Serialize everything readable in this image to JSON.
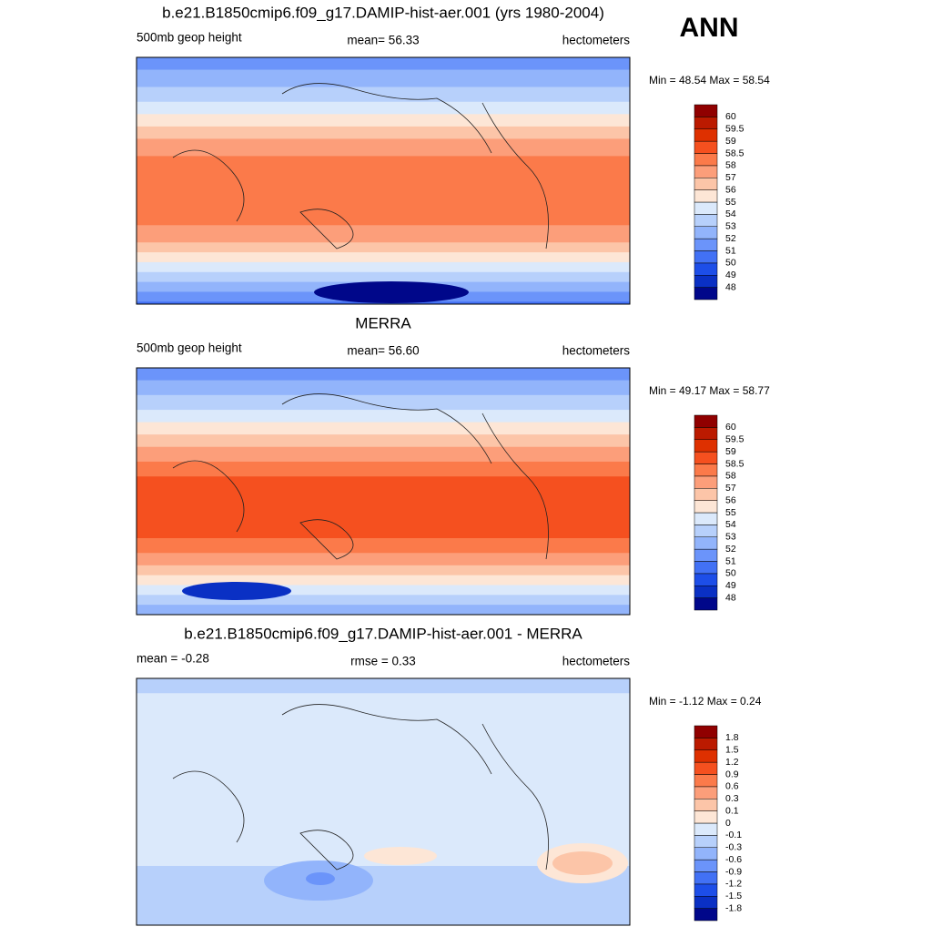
{
  "header": {
    "season": "ANN"
  },
  "panels": [
    {
      "title": "b.e21.B1850cmip6.f09_g17.DAMIP-hist-aer.001 (yrs 1980-2004)",
      "left": "500mb geop height",
      "center": "mean=  56.33",
      "right": "hectometers",
      "range": "Min =  48.54 Max =  58.54",
      "colorbar": {
        "levels": [
          48,
          49,
          50,
          51,
          52,
          53,
          54,
          55,
          56,
          57,
          58,
          58.5,
          59,
          59.5,
          60
        ],
        "colors": [
          "#00078a",
          "#0a30c4",
          "#1d4ee8",
          "#4271f5",
          "#6b94fa",
          "#92b4fb",
          "#b7d0fb",
          "#dbe9fb",
          "#fde6d6",
          "#fcc5a8",
          "#fc9e7a",
          "#fb7a4a",
          "#f5501f",
          "#de3000",
          "#bb1a00",
          "#900000"
        ]
      }
    },
    {
      "title": "MERRA",
      "left": "500mb geop height",
      "center": "mean=  56.60",
      "right": "hectometers",
      "range": "Min =  49.17 Max =  58.77",
      "colorbar": {
        "levels": [
          48,
          49,
          50,
          51,
          52,
          53,
          54,
          55,
          56,
          57,
          58,
          58.5,
          59,
          59.5,
          60
        ],
        "colors": [
          "#00078a",
          "#0a30c4",
          "#1d4ee8",
          "#4271f5",
          "#6b94fa",
          "#92b4fb",
          "#b7d0fb",
          "#dbe9fb",
          "#fde6d6",
          "#fcc5a8",
          "#fc9e7a",
          "#fb7a4a",
          "#f5501f",
          "#de3000",
          "#bb1a00",
          "#900000"
        ]
      }
    },
    {
      "title": "b.e21.B1850cmip6.f09_g17.DAMIP-hist-aer.001 - MERRA",
      "left": "mean =  -0.28",
      "center": "rmse =   0.33",
      "right": "hectometers",
      "range": "Min =  -1.12 Max =   0.24",
      "colorbar": {
        "levels": [
          -1.8,
          -1.5,
          -1.2,
          -0.9,
          -0.6,
          -0.3,
          -0.1,
          0,
          0.1,
          0.3,
          0.6,
          0.9,
          1.2,
          1.5,
          1.8
        ],
        "colors": [
          "#00078a",
          "#0a30c4",
          "#1d4ee8",
          "#4271f5",
          "#6b94fa",
          "#92b4fb",
          "#b7d0fb",
          "#dbe9fb",
          "#fde6d6",
          "#fcc5a8",
          "#fc9e7a",
          "#fb7a4a",
          "#f5501f",
          "#de3000",
          "#bb1a00",
          "#900000"
        ]
      }
    }
  ]
}
